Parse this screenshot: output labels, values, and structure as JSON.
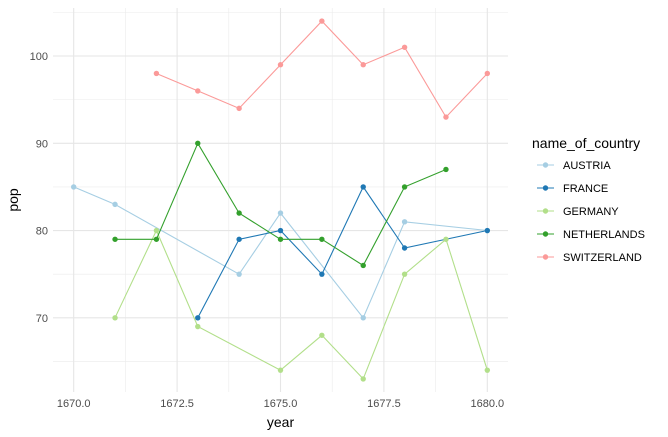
{
  "chart_data": {
    "type": "line",
    "xlabel": "year",
    "ylabel": "pop",
    "xlim": [
      1669.5,
      1680.5
    ],
    "ylim": [
      61.5,
      105.5
    ],
    "x_ticks": [
      1670,
      1672.5,
      1675,
      1677.5,
      1680
    ],
    "x_tick_labels": [
      "1670.0",
      "1672.5",
      "1675.0",
      "1677.5",
      "1680.0"
    ],
    "y_ticks": [
      70,
      80,
      90,
      100
    ],
    "y_tick_labels": [
      "70",
      "80",
      "90",
      "100"
    ],
    "grid": true,
    "legend": {
      "title": "name_of_country",
      "position": "right"
    },
    "series": [
      {
        "name": "AUSTRIA",
        "color": "#a6cee3",
        "points": [
          [
            1670,
            85
          ],
          [
            1671,
            83
          ],
          [
            1674,
            75
          ],
          [
            1675,
            82
          ],
          [
            1677,
            70
          ],
          [
            1678,
            81
          ],
          [
            1680,
            80
          ]
        ]
      },
      {
        "name": "FRANCE",
        "color": "#1f78b4",
        "points": [
          [
            1673,
            70
          ],
          [
            1674,
            79
          ],
          [
            1675,
            80
          ],
          [
            1676,
            75
          ],
          [
            1677,
            85
          ],
          [
            1678,
            78
          ],
          [
            1680,
            80
          ]
        ]
      },
      {
        "name": "GERMANY",
        "color": "#b2df8a",
        "points": [
          [
            1671,
            70
          ],
          [
            1672,
            80
          ],
          [
            1673,
            69
          ],
          [
            1675,
            64
          ],
          [
            1676,
            68
          ],
          [
            1677,
            63
          ],
          [
            1678,
            75
          ],
          [
            1679,
            79
          ],
          [
            1680,
            64
          ]
        ]
      },
      {
        "name": "NETHERLANDS",
        "color": "#33a02c",
        "points": [
          [
            1671,
            79
          ],
          [
            1672,
            79
          ],
          [
            1673,
            90
          ],
          [
            1674,
            82
          ],
          [
            1675,
            79
          ],
          [
            1676,
            79
          ],
          [
            1677,
            76
          ],
          [
            1678,
            85
          ],
          [
            1679,
            87
          ]
        ]
      },
      {
        "name": "SWITZERLAND",
        "color": "#fb9a99",
        "points": [
          [
            1672,
            98
          ],
          [
            1673,
            96
          ],
          [
            1674,
            94
          ],
          [
            1675,
            99
          ],
          [
            1676,
            104
          ],
          [
            1677,
            99
          ],
          [
            1678,
            101
          ],
          [
            1679,
            93
          ],
          [
            1680,
            98
          ]
        ]
      }
    ]
  }
}
